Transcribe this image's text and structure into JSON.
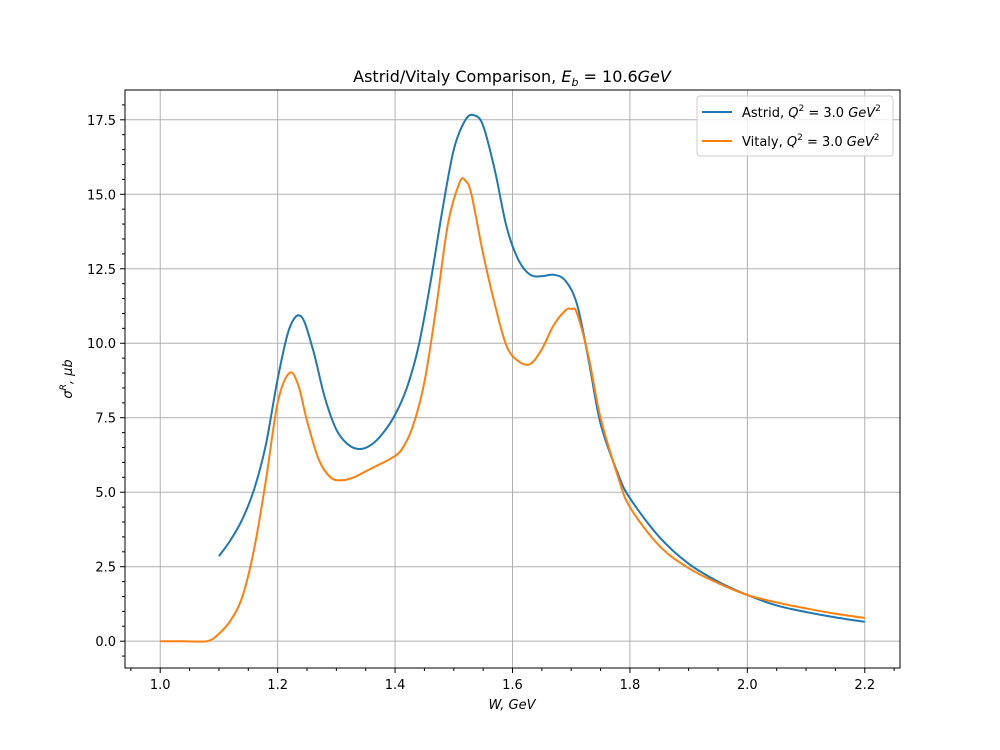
{
  "chart_data": {
    "type": "line",
    "title": "Astrid/Vitaly Comparison, E_b = 10.6GeV",
    "xlabel": "W, GeV",
    "ylabel": "σ^R, μb",
    "xlim": [
      0.94,
      2.26
    ],
    "ylim": [
      -0.9,
      18.5
    ],
    "xticks": [
      "1.0",
      "1.2",
      "1.4",
      "1.6",
      "1.8",
      "2.0",
      "2.2"
    ],
    "yticks": [
      "0.0",
      "2.5",
      "5.0",
      "7.5",
      "10.0",
      "12.5",
      "15.0",
      "17.5"
    ],
    "grid": true,
    "legend_position": "top-right",
    "series": [
      {
        "name": "Astrid, Q^2 = 3.0 GeV^2",
        "color": "#1f77b4",
        "x": [
          1.1,
          1.12,
          1.14,
          1.16,
          1.18,
          1.2,
          1.22,
          1.24,
          1.26,
          1.28,
          1.3,
          1.32,
          1.34,
          1.36,
          1.38,
          1.4,
          1.42,
          1.44,
          1.46,
          1.48,
          1.5,
          1.52,
          1.535,
          1.55,
          1.57,
          1.59,
          1.61,
          1.63,
          1.65,
          1.67,
          1.69,
          1.71,
          1.73,
          1.75,
          1.78,
          1.8,
          1.85,
          1.9,
          1.95,
          2.0,
          2.05,
          2.1,
          2.15,
          2.2
        ],
        "y": [
          2.85,
          3.4,
          4.1,
          5.1,
          6.6,
          8.8,
          10.5,
          10.9,
          9.8,
          8.2,
          7.1,
          6.6,
          6.45,
          6.6,
          7.0,
          7.6,
          8.5,
          9.9,
          12.0,
          14.4,
          16.5,
          17.5,
          17.65,
          17.3,
          15.8,
          13.9,
          12.8,
          12.3,
          12.25,
          12.3,
          12.1,
          11.3,
          9.4,
          7.3,
          5.6,
          4.8,
          3.5,
          2.6,
          2.0,
          1.55,
          1.2,
          0.98,
          0.8,
          0.65
        ]
      },
      {
        "name": "Vitaly, Q^2 = 3.0 GeV^2",
        "color": "#ff7f0e",
        "x": [
          1.0,
          1.04,
          1.08,
          1.1,
          1.12,
          1.14,
          1.16,
          1.18,
          1.2,
          1.22,
          1.235,
          1.25,
          1.27,
          1.29,
          1.31,
          1.33,
          1.35,
          1.37,
          1.39,
          1.41,
          1.43,
          1.45,
          1.47,
          1.49,
          1.51,
          1.52,
          1.53,
          1.55,
          1.57,
          1.59,
          1.61,
          1.63,
          1.65,
          1.67,
          1.69,
          1.7,
          1.71,
          1.73,
          1.75,
          1.78,
          1.8,
          1.85,
          1.9,
          1.95,
          2.0,
          2.05,
          2.1,
          2.15,
          2.2
        ],
        "y": [
          0.0,
          0.0,
          0.0,
          0.25,
          0.7,
          1.5,
          3.1,
          5.4,
          8.0,
          9.0,
          8.6,
          7.4,
          6.1,
          5.5,
          5.4,
          5.5,
          5.7,
          5.9,
          6.1,
          6.4,
          7.2,
          8.7,
          11.2,
          14.0,
          15.4,
          15.45,
          15.0,
          13.0,
          11.3,
          9.9,
          9.4,
          9.3,
          9.8,
          10.6,
          11.1,
          11.15,
          11.0,
          9.5,
          7.5,
          5.5,
          4.5,
          3.2,
          2.45,
          1.95,
          1.55,
          1.3,
          1.1,
          0.92,
          0.78
        ]
      }
    ]
  }
}
